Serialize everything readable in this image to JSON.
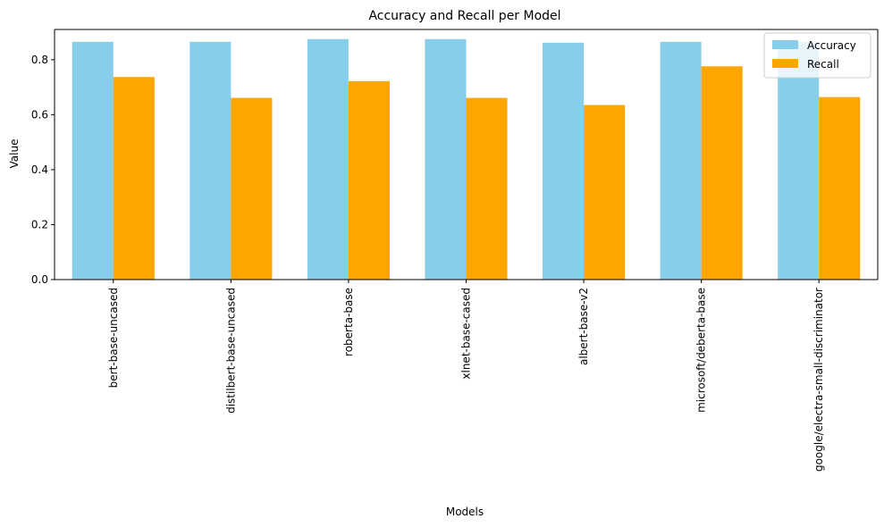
{
  "chart_data": {
    "type": "bar",
    "title": "Accuracy and Recall per Model",
    "xlabel": "Models",
    "ylabel": "Value",
    "ylim": [
      0,
      0.91
    ],
    "yticks": [
      "0.0",
      "0.2",
      "0.4",
      "0.6",
      "0.8"
    ],
    "categories": [
      "bert-base-uncased",
      "distilbert-base-uncased",
      "roberta-base",
      "xlnet-base-cased",
      "albert-base-v2",
      "microsoft/deberta-base",
      "google/electra-small-discriminator"
    ],
    "series": [
      {
        "name": "Accuracy",
        "color": "#87CEEB",
        "values": [
          0.865,
          0.865,
          0.875,
          0.875,
          0.862,
          0.865,
          0.865
        ]
      },
      {
        "name": "Recall",
        "color": "#FFA500",
        "values": [
          0.737,
          0.661,
          0.722,
          0.661,
          0.635,
          0.776,
          0.664
        ]
      }
    ],
    "legend_position": "top-right",
    "grid": false
  }
}
